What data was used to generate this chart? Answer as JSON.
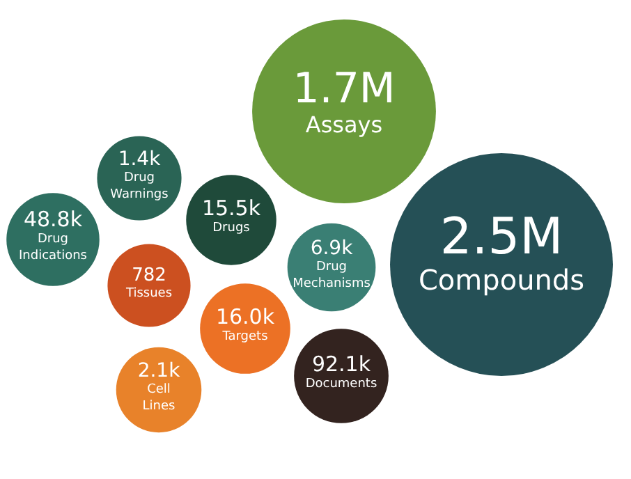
{
  "chart_data": {
    "type": "other",
    "categories": [
      "Assays",
      "Compounds",
      "Drug Warnings",
      "Drugs",
      "Drug Indications",
      "Tissues",
      "Drug Mechanisms",
      "Targets",
      "Cell Lines",
      "Documents"
    ],
    "values": [
      1700000,
      2500000,
      1400,
      15500,
      48800,
      782,
      6900,
      16000,
      2100,
      92100
    ],
    "value_labels": [
      "1.7M",
      "2.5M",
      "1.4k",
      "15.5k",
      "48.8k",
      "782",
      "6.9k",
      "16.0k",
      "2.1k",
      "92.1k"
    ],
    "colors": [
      "#6a9a3a",
      "#255056",
      "#2a6455",
      "#1f4a3a",
      "#2e6f61",
      "#cc5020",
      "#3a7f74",
      "#ec7125",
      "#e8822a",
      "#33231f"
    ]
  }
}
